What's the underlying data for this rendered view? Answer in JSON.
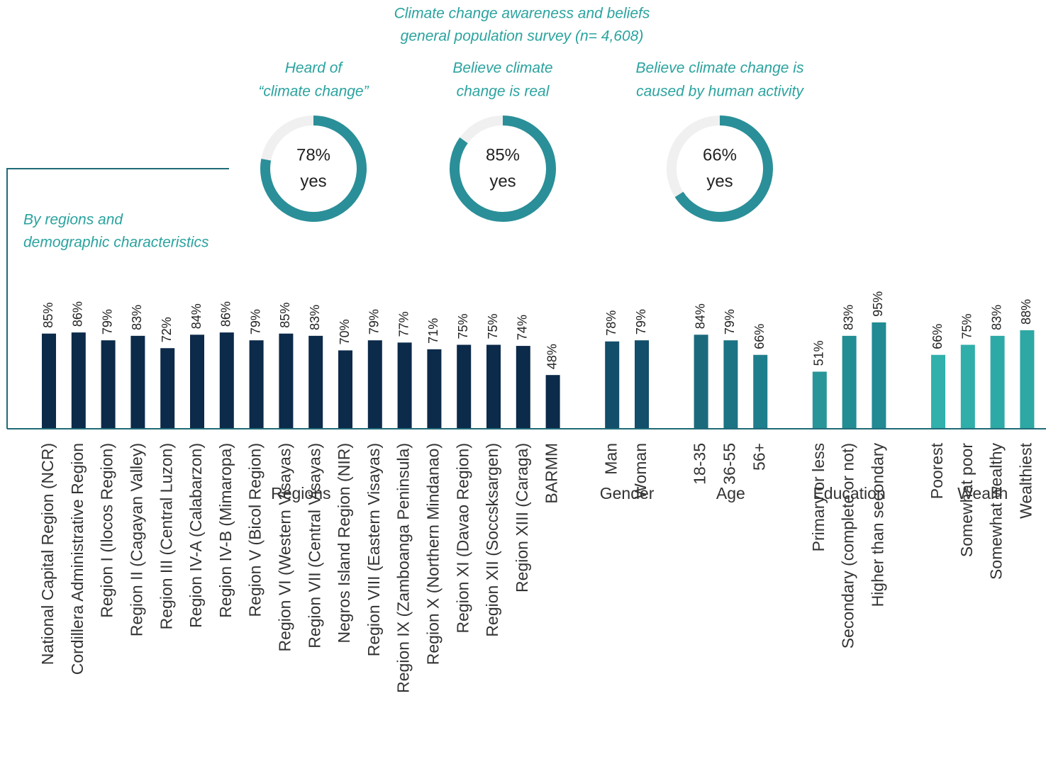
{
  "title": [
    "Climate change awareness and beliefs",
    "general population survey (n= 4,608)"
  ],
  "chart_data": [
    {
      "type": "donut",
      "title": [
        "Heard of",
        "“climate change”"
      ],
      "value": 78,
      "value_label": "78%",
      "label": "yes",
      "range": [
        0,
        100
      ],
      "color": "#2a8f98",
      "rest_color": "#f0f0f0"
    },
    {
      "type": "donut",
      "title": [
        "Believe climate",
        "change is real"
      ],
      "value": 85,
      "value_label": "85%",
      "label": "yes",
      "range": [
        0,
        100
      ],
      "color": "#2a8f98",
      "rest_color": "#f0f0f0"
    },
    {
      "type": "donut",
      "title": [
        "Believe climate change is",
        "caused by human activity"
      ],
      "value": 66,
      "value_label": "66%",
      "label": "yes",
      "range": [
        0,
        100
      ],
      "color": "#2a8f98",
      "rest_color": "#f0f0f0"
    },
    {
      "type": "bar",
      "subtitle": [
        "By regions and",
        "demographic characteristics"
      ],
      "ylim": [
        0,
        100
      ],
      "groups": [
        {
          "name": "Regions",
          "categories": [
            "National Capital Region (NCR)",
            "Cordillera Administrative Region",
            "Region I (Ilocos Region)",
            "Region II (Cagayan Valley)",
            "Region III (Central Luzon)",
            "Region IV-A (Calabarzon)",
            "Region IV-B (Mimaropa)",
            "Region V (Bicol Region)",
            "Region VI (Western Visayas)",
            "Region VII (Central Visayas)",
            "Negros Island Region (NIR)",
            "Region VIII (Eastern Visayas)",
            "Region IX (Zamboanga Peninsula)",
            "Region X (Northern Mindanao)",
            "Region XI (Davao Region)",
            "Region XII (Soccsksargen)",
            "Region XIII (Caraga)",
            "BARMM"
          ],
          "values": [
            85,
            86,
            79,
            83,
            72,
            84,
            86,
            79,
            85,
            83,
            70,
            79,
            77,
            71,
            75,
            75,
            74,
            48
          ],
          "value_labels": [
            "85%",
            "86%",
            "79%",
            "83%",
            "72%",
            "84%",
            "86%",
            "79%",
            "85%",
            "83%",
            "70%",
            "79%",
            "77%",
            "71%",
            "75%",
            "75%",
            "74%",
            "48%"
          ],
          "colors": [
            "#0c2a4a",
            "#0c2a4a",
            "#0c2a4a",
            "#0c2a4a",
            "#0c2a4a",
            "#0c2a4a",
            "#0c2a4a",
            "#0c2a4a",
            "#0c2a4a",
            "#0c2a4a",
            "#0c2a4a",
            "#0c2a4a",
            "#0c2a4a",
            "#0c2a4a",
            "#0c2a4a",
            "#0c2a4a",
            "#0c2a4a",
            "#0c2a4a"
          ]
        },
        {
          "name": "Gender",
          "categories": [
            "Man",
            "Woman"
          ],
          "values": [
            78,
            79
          ],
          "value_labels": [
            "78%",
            "79%"
          ],
          "colors": [
            "#134e6a",
            "#134e6a"
          ]
        },
        {
          "name": "Age",
          "categories": [
            "18-35",
            "36-55",
            "56+"
          ],
          "values": [
            84,
            79,
            66
          ],
          "value_labels": [
            "84%",
            "79%",
            "66%"
          ],
          "colors": [
            "#1a6a7c",
            "#1c7384",
            "#1f7e8c"
          ]
        },
        {
          "name": "Education",
          "categories": [
            "Primary or less",
            "Secondary (complete or not)",
            "Higher than secondary"
          ],
          "values": [
            51,
            83,
            95
          ],
          "value_labels": [
            "51%",
            "83%",
            "95%"
          ],
          "colors": [
            "#289699",
            "#238d94",
            "#218a92"
          ]
        },
        {
          "name": "Wealth",
          "categories": [
            "Poorest",
            "Somewhat poor",
            "Somewhat wealthy",
            "Wealthiest"
          ],
          "values": [
            66,
            75,
            83,
            88
          ],
          "value_labels": [
            "66%",
            "75%",
            "83%",
            "88%"
          ],
          "colors": [
            "#31b0ac",
            "#30aea9",
            "#2eaaa6",
            "#2ea8a4"
          ]
        }
      ]
    }
  ]
}
